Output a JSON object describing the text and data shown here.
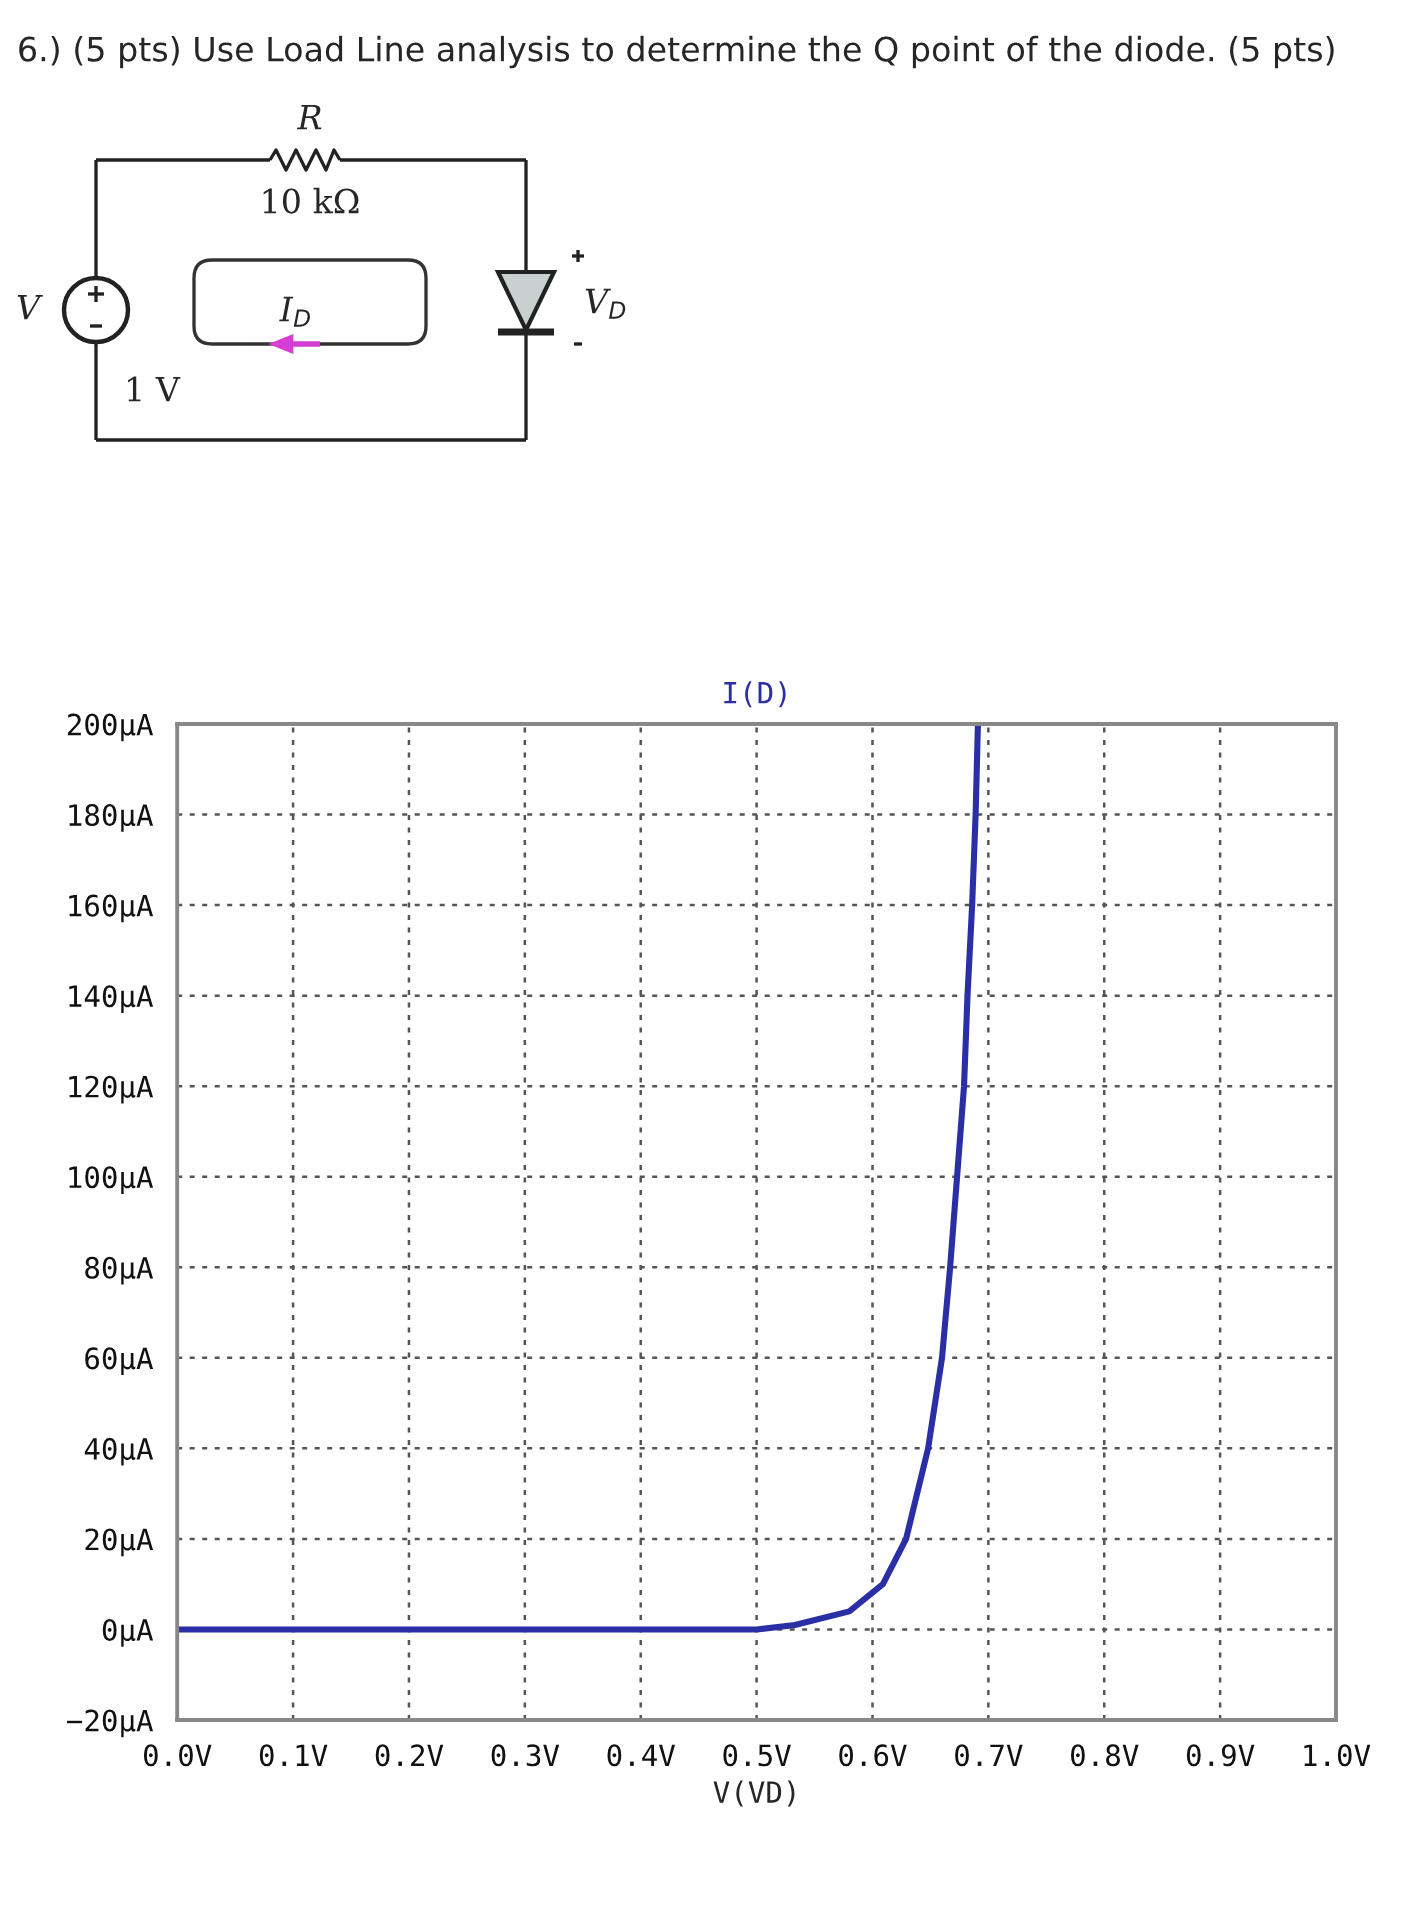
{
  "chart_data": {
    "type": "line",
    "title": "6.) (5 pts) Use Load Line analysis to determine the Q point of the diode. (5 pts)",
    "xlabel": "V(VD)",
    "annotations": [
      "R",
      "10 kΩ",
      "V",
      "1 V",
      "I$_{D}$",
      "V$_{D}$"
    ],
    "series": [
      {
        "name": "I(D)",
        "color": "#2a2fa6",
        "x": [
          0.0,
          0.1,
          0.2,
          0.3,
          0.4,
          0.5,
          0.533,
          0.58,
          0.609,
          0.629,
          0.648,
          0.66,
          0.667,
          0.673,
          0.679,
          0.682,
          0.686,
          0.689,
          0.691
        ],
        "values": [
          0,
          0,
          0,
          0,
          0,
          0,
          1,
          4,
          10,
          20,
          40,
          60,
          80,
          100,
          120,
          140,
          160,
          180,
          200
        ]
      }
    ],
    "xlim": [
      0.0,
      1.0
    ],
    "xticks": [
      {
        "value": 0.0,
        "label": "0.0V"
      },
      {
        "value": 0.1,
        "label": "0.1V"
      },
      {
        "value": 0.2,
        "label": "0.2V"
      },
      {
        "value": 0.3,
        "label": "0.3V"
      },
      {
        "value": 0.4,
        "label": "0.4V"
      },
      {
        "value": 0.5,
        "label": "0.5V"
      },
      {
        "value": 0.6,
        "label": "0.6V"
      },
      {
        "value": 0.7,
        "label": "0.7V"
      },
      {
        "value": 0.8,
        "label": "0.8V"
      },
      {
        "value": 0.9,
        "label": "0.9V"
      },
      {
        "value": 1.0,
        "label": "1.0V"
      }
    ],
    "ylim": [
      -20,
      200
    ],
    "yticks": [
      {
        "value": -20,
        "label": "−20µA"
      },
      {
        "value": 0,
        "label": "0µA"
      },
      {
        "value": 20,
        "label": "20µA"
      },
      {
        "value": 40,
        "label": "40µA"
      },
      {
        "value": 60,
        "label": "60µA"
      },
      {
        "value": 80,
        "label": "80µA"
      },
      {
        "value": 100,
        "label": "100µA"
      },
      {
        "value": 120,
        "label": "120µA"
      },
      {
        "value": 140,
        "label": "140µA"
      },
      {
        "value": 160,
        "label": "160µA"
      },
      {
        "value": 180,
        "label": "180µA"
      },
      {
        "value": 200,
        "label": "200µA"
      }
    ],
    "grid": true,
    "legend": "top",
    "line_style": "solid",
    "marker": "none"
  }
}
